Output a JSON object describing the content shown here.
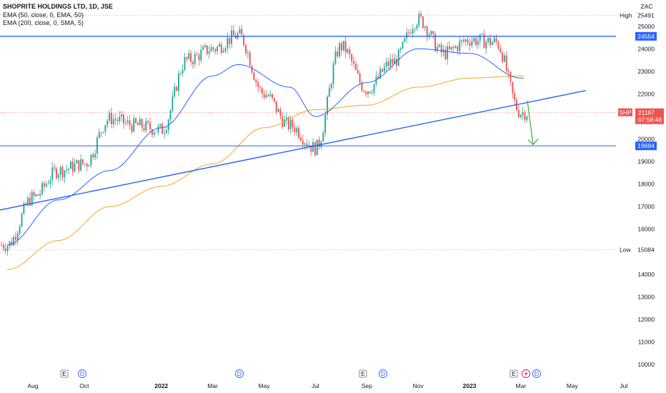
{
  "legend": {
    "title": "SHOPRITE HOLDINGS LTD, 1D, JSE",
    "line1": "EMA (50, close, 0, EMA, 50)",
    "line2": "EMA (200, close, 0, SMA, 5)"
  },
  "axis": {
    "currency": "ZAC",
    "y_ticks": [
      10000,
      11000,
      12000,
      13000,
      14000,
      15000,
      16000,
      17000,
      18000,
      19000,
      20000,
      21000,
      22000,
      23000,
      24000,
      25000
    ],
    "x_ticks": [
      "Aug",
      "Oct",
      "2022",
      "Mar",
      "May",
      "Jul",
      "Sep",
      "Nov",
      "2023",
      "Mar",
      "May",
      "Jul"
    ]
  },
  "price_tags": {
    "high_label": "High",
    "high_value": "25491",
    "resistance_value": "24554",
    "symbol": "SHP",
    "last_value": "21167",
    "countdown": "07:58:48",
    "support_value": "19694",
    "low_label": "Low",
    "low_value": "15084"
  },
  "colors": {
    "up": "#26a69a",
    "down": "#ef5350",
    "ema50": "#2962ff",
    "ema200": "#f5a623",
    "levels": "#2962ff",
    "arrow": "#4caf50",
    "text": "#131722"
  },
  "events": [
    {
      "type": "E",
      "month": "Sep 2021"
    },
    {
      "type": "D",
      "month": "Oct 2021"
    },
    {
      "type": "D",
      "month": "Apr 2022"
    },
    {
      "type": "E",
      "month": "Sep 2022"
    },
    {
      "type": "D",
      "month": "Sep 2022"
    },
    {
      "type": "E",
      "month": "Feb 2023"
    },
    {
      "type": "S",
      "month": "Mar 2023"
    },
    {
      "type": "D",
      "month": "Mar 2023"
    }
  ],
  "chart_data": {
    "type": "candlestick",
    "title": "SHOPRITE HOLDINGS LTD, 1D, JSE",
    "ylabel": "ZAC",
    "ylim": [
      9600,
      25800
    ],
    "y_scale": "linear",
    "grid": false,
    "levels": {
      "resistance": 24554,
      "support": 19694,
      "high": 25491,
      "low": 15084,
      "last": 21167
    },
    "trendline": {
      "from": {
        "date": "Jul 2021",
        "price": 16850
      },
      "to": {
        "date": "Apr 2023",
        "price": 22150
      }
    },
    "projection": {
      "from": 21700,
      "to": 19750
    },
    "series": [
      {
        "name": "EMA (50, close, 0, EMA, 50)",
        "x": [
          "Jul 2021",
          "Sep 2021",
          "Nov 2021",
          "Jan 2022",
          "Mar 2022",
          "Apr 2022",
          "Jun 2022",
          "Jul 2022",
          "Sep 2022",
          "Nov 2022",
          "Jan 2023",
          "Mar 2023"
        ],
        "values": [
          15300,
          17300,
          18600,
          20500,
          22800,
          23300,
          22300,
          21000,
          22500,
          24000,
          23800,
          22700
        ]
      },
      {
        "name": "EMA (200, close, 0, SMA, 5)",
        "x": [
          "Jul 2021",
          "Sep 2021",
          "Nov 2021",
          "Jan 2022",
          "Mar 2022",
          "May 2022",
          "Jul 2022",
          "Sep 2022",
          "Nov 2022",
          "Jan 2023",
          "Mar 2023"
        ],
        "values": [
          14200,
          15500,
          17000,
          17900,
          18900,
          20500,
          21300,
          21500,
          22300,
          22700,
          22800
        ]
      },
      {
        "name": "price",
        "x": [
          "Jul 2021",
          "Aug 2021",
          "Sep 2021",
          "Oct 2021",
          "Nov 2021",
          "Dec 2021",
          "Jan 2022",
          "Feb 2022",
          "Mar 2022",
          "Apr 2022",
          "May 2022",
          "Jun 2022",
          "Jul 2022",
          "Aug 2022",
          "Sep 2022",
          "Oct 2022",
          "Nov 2022",
          "Dec 2022",
          "Jan 2023",
          "Feb 2023",
          "Mar 2023"
        ],
        "values": [
          15300,
          17400,
          18600,
          18900,
          20900,
          20600,
          20400,
          23500,
          24000,
          24600,
          22000,
          20600,
          19600,
          24100,
          22200,
          23400,
          25300,
          23800,
          24400,
          24300,
          21167
        ]
      }
    ]
  }
}
